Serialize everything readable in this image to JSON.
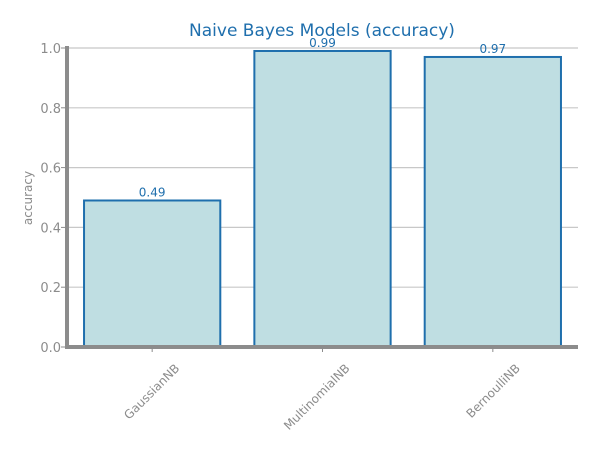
{
  "chart_data": {
    "type": "bar",
    "title": "Naive Bayes Models (accuracy)",
    "xlabel": "",
    "ylabel": "accuracy",
    "categories": [
      "GaussianNB",
      "MultinomialNB",
      "BernoulliNB"
    ],
    "values": [
      0.49,
      0.99,
      0.97
    ],
    "data_labels": [
      "0.49",
      "0.99",
      "0.97"
    ],
    "ylim": [
      0,
      1.0
    ],
    "yticks": [
      "0.0",
      "0.2",
      "0.4",
      "0.6",
      "0.8",
      "1.0"
    ],
    "grid": "horizontal",
    "colors": {
      "bar_fill": "#bfdee2",
      "bar_edge": "#1f6fad",
      "title": "#1f6fad",
      "data_label": "#1f6fad",
      "grid": "#c8c8c8",
      "axis": "#8c8c8c"
    }
  }
}
